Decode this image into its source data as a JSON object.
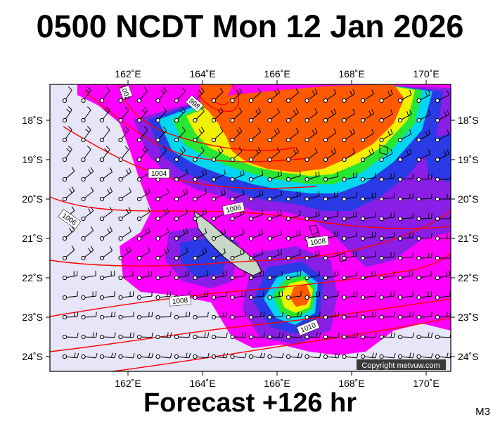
{
  "title": "0500 NCDT Mon 12 Jan 2026",
  "footer": "Forecast +126 hr",
  "model_code": "M3",
  "copyright": "Copyright metvuw.com",
  "lon_labels": [
    "162˚E",
    "164˚E",
    "166˚E",
    "168˚E",
    "170˚E"
  ],
  "lat_labels": [
    "18˚S",
    "19˚S",
    "20˚S",
    "21˚S",
    "22˚S",
    "23˚S",
    "24˚S"
  ],
  "isobar_labels": [
    "1002",
    "998",
    "1004",
    "1006",
    "1006",
    "1008",
    "1008",
    "1010"
  ],
  "colors": {
    "background": "#e6e6f8",
    "magenta": "#ff00ff",
    "purple": "#8a1ee6",
    "blue": "#2a3ae6",
    "cyan": "#00d6f0",
    "green": "#28e632",
    "yellow": "#f0f000",
    "orange": "#ff5a00",
    "isobar": "#ff0000"
  }
}
